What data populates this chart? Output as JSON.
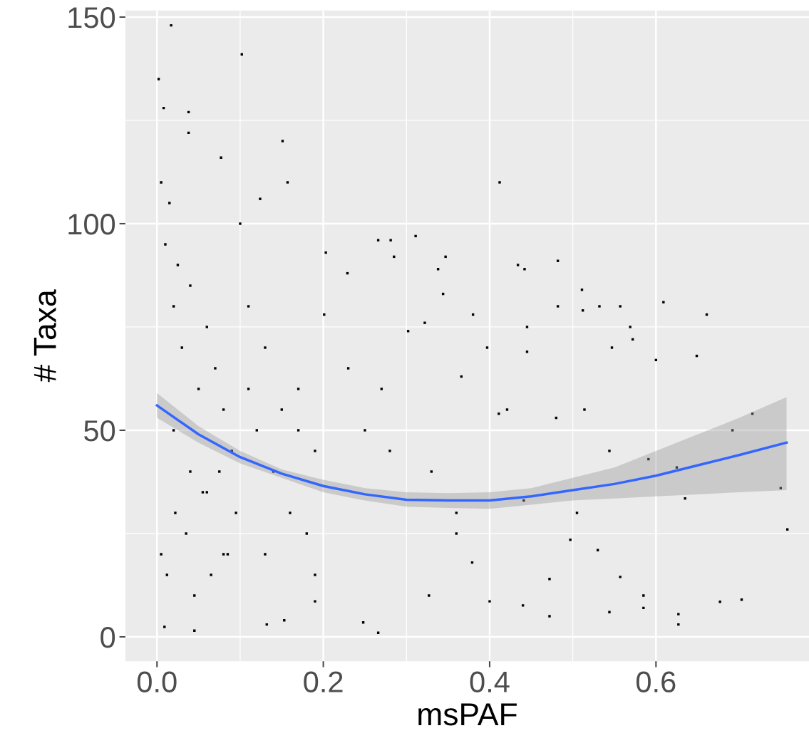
{
  "chart_data": {
    "type": "scatter",
    "xlabel": "msPAF",
    "ylabel": "# Taxa",
    "xlim": [
      -0.038,
      0.784
    ],
    "ylim": [
      -5.9,
      151.6
    ],
    "xticks": [
      {
        "value": 0,
        "label": "0.0"
      },
      0.2,
      0.4,
      0.6
    ],
    "yticks": [
      0,
      50,
      100,
      150
    ],
    "grid": true,
    "series": [
      {
        "marker": "square",
        "color": "#000000",
        "x": [
          0.002,
          0.017,
          0.102,
          0.008,
          0.038,
          0.038,
          0.151,
          0.157,
          0.077,
          0.412,
          0.124,
          0.266,
          0.281,
          0.311,
          0.285,
          0.338,
          0.347,
          0.434,
          0.442,
          0.482,
          0.511,
          0.512,
          0.532,
          0.557,
          0.569,
          0.572,
          0.609,
          0.661,
          0.649,
          0.6,
          0.547,
          0.482,
          0.445,
          0.445,
          0.344,
          0.38,
          0.397,
          0.366,
          0.302,
          0.322,
          0.203,
          0.229,
          0.201,
          0.716,
          0.692,
          0.758,
          0.75,
          0.677,
          0.703,
          0.625,
          0.627,
          0.627,
          0.635,
          0.585,
          0.585,
          0.557,
          0.544,
          0.53,
          0.497,
          0.472,
          0.472,
          0.44,
          0.4,
          0.379,
          0.36,
          0.327,
          0.266,
          0.248,
          0.19,
          0.153,
          0.132,
          0.045,
          0.009,
          0.591,
          0.544,
          0.514,
          0.48,
          0.411,
          0.421,
          0.441,
          0.505,
          0.005,
          0.01,
          0.015,
          0.02,
          0.025,
          0.03,
          0.04,
          0.05,
          0.06,
          0.07,
          0.08,
          0.09,
          0.005,
          0.012,
          0.022,
          0.035,
          0.045,
          0.055,
          0.065,
          0.075,
          0.085,
          0.095,
          0.11,
          0.12,
          0.13,
          0.14,
          0.16,
          0.17,
          0.18,
          0.19,
          0.11,
          0.13,
          0.15,
          0.17,
          0.19,
          0.02,
          0.04,
          0.06,
          0.08,
          0.1,
          0.25,
          0.28,
          0.33,
          0.36,
          0.23,
          0.27
        ],
        "values": [
          135,
          148,
          141,
          128,
          127,
          122,
          120,
          110,
          116,
          110,
          106,
          96,
          96,
          97,
          92,
          89,
          92,
          90,
          89,
          91,
          84,
          79,
          80,
          80,
          75,
          72,
          81,
          78,
          68,
          67,
          70,
          80,
          75,
          69,
          83,
          78,
          70,
          63,
          74,
          76,
          93,
          88,
          78,
          54,
          50,
          26,
          36,
          8.5,
          9,
          41,
          3,
          5.5,
          33.5,
          10,
          7,
          14.5,
          6,
          21,
          23.5,
          14,
          5,
          7.6,
          8.6,
          18,
          25,
          10,
          1,
          3.5,
          8.6,
          4,
          3,
          1.5,
          2.4,
          43,
          45,
          55,
          53,
          54,
          55,
          33,
          30,
          110,
          95,
          105,
          80,
          90,
          70,
          85,
          60,
          75,
          65,
          55,
          45,
          20,
          15,
          30,
          25,
          10,
          35,
          15,
          40,
          20,
          30,
          60,
          50,
          20,
          40,
          30,
          50,
          25,
          15,
          80,
          70,
          55,
          60,
          45,
          50,
          40,
          35,
          20,
          100,
          50,
          45,
          40,
          30,
          65,
          60
        ]
      },
      {
        "type": "line",
        "color": "#3366ff",
        "x": [
          0,
          0.05,
          0.1,
          0.15,
          0.2,
          0.25,
          0.3,
          0.35,
          0.4,
          0.45,
          0.5,
          0.55,
          0.6,
          0.65,
          0.7,
          0.757
        ],
        "values": [
          56,
          49,
          43.5,
          39.5,
          36.5,
          34.5,
          33.2,
          33,
          33,
          34,
          35.5,
          37,
          39,
          41.5,
          44,
          47
        ],
        "lower": [
          53,
          47,
          42,
          38.5,
          35,
          33,
          31.5,
          31.2,
          31,
          32,
          33,
          33.5,
          34,
          34.5,
          35,
          35.5
        ],
        "upper": [
          59,
          51,
          45,
          40.5,
          38,
          36,
          35,
          34.8,
          35,
          36,
          38.5,
          41,
          45,
          49,
          53,
          58
        ]
      }
    ]
  }
}
